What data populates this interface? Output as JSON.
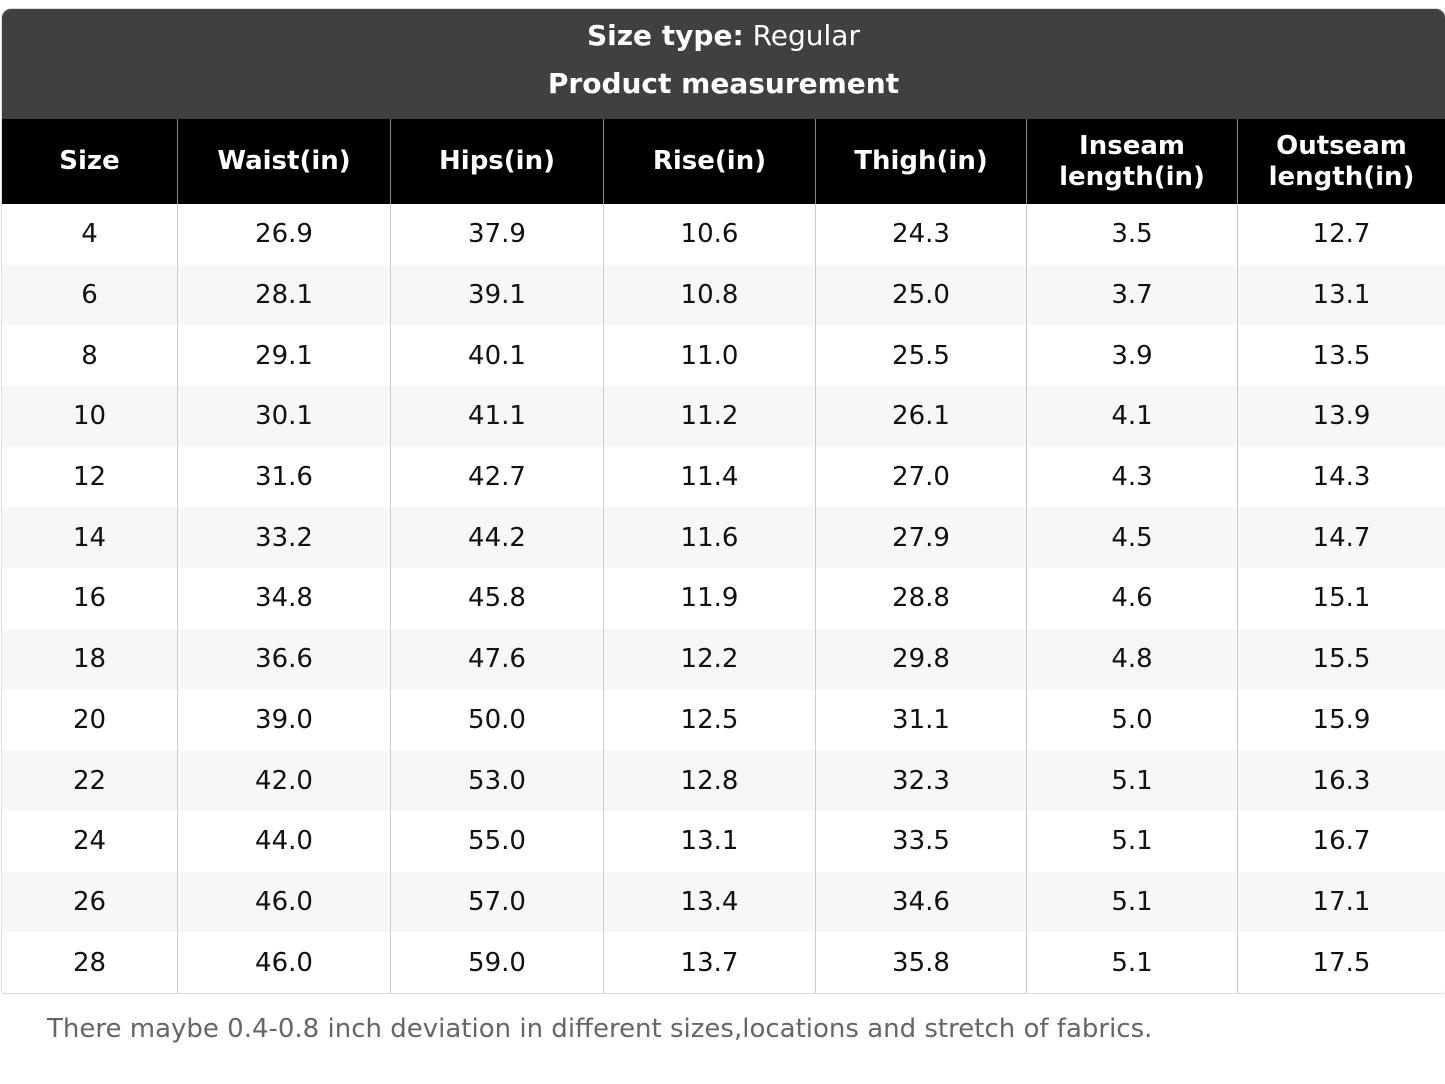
{
  "header": {
    "size_type_label": "Size type:",
    "size_type_value": "Regular",
    "subtitle": "Product measurement"
  },
  "table": {
    "columns": [
      "Size",
      "Waist(in)",
      "Hips(in)",
      "Rise(in)",
      "Thigh(in)",
      "Inseam length(in)",
      "Outseam length(in)"
    ],
    "rows": [
      [
        "4",
        "26.9",
        "37.9",
        "10.6",
        "24.3",
        "3.5",
        "12.7"
      ],
      [
        "6",
        "28.1",
        "39.1",
        "10.8",
        "25.0",
        "3.7",
        "13.1"
      ],
      [
        "8",
        "29.1",
        "40.1",
        "11.0",
        "25.5",
        "3.9",
        "13.5"
      ],
      [
        "10",
        "30.1",
        "41.1",
        "11.2",
        "26.1",
        "4.1",
        "13.9"
      ],
      [
        "12",
        "31.6",
        "42.7",
        "11.4",
        "27.0",
        "4.3",
        "14.3"
      ],
      [
        "14",
        "33.2",
        "44.2",
        "11.6",
        "27.9",
        "4.5",
        "14.7"
      ],
      [
        "16",
        "34.8",
        "45.8",
        "11.9",
        "28.8",
        "4.6",
        "15.1"
      ],
      [
        "18",
        "36.6",
        "47.6",
        "12.2",
        "29.8",
        "4.8",
        "15.5"
      ],
      [
        "20",
        "39.0",
        "50.0",
        "12.5",
        "31.1",
        "5.0",
        "15.9"
      ],
      [
        "22",
        "42.0",
        "53.0",
        "12.8",
        "32.3",
        "5.1",
        "16.3"
      ],
      [
        "24",
        "44.0",
        "55.0",
        "13.1",
        "33.5",
        "5.1",
        "16.7"
      ],
      [
        "26",
        "46.0",
        "57.0",
        "13.4",
        "34.6",
        "5.1",
        "17.1"
      ],
      [
        "28",
        "46.0",
        "59.0",
        "13.7",
        "35.8",
        "5.1",
        "17.5"
      ]
    ]
  },
  "footer": {
    "note": "There maybe 0.4-0.8 inch deviation in different sizes,locations and stretch of fabrics."
  }
}
